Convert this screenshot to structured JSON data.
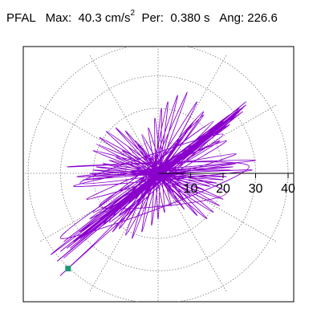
{
  "header": {
    "station": "PFAL",
    "max_label": "Max:",
    "max_value": "40.3 cm/s",
    "max_exp": "2",
    "per_label": "Per:",
    "per_value": "0.380 s",
    "ang_label": "Ang:",
    "ang_value": "226.6"
  },
  "chart_data": {
    "type": "scatter",
    "subtype": "polar-hodogram",
    "title": "PFAL   Max:   40.3 cm/s2   Per:  0.380 s   Ang: 226.6",
    "units": "cm/s2",
    "peak_amplitude": 40.3,
    "period_s": 0.38,
    "peak_angle_deg": 226.6,
    "radial_range": [
      0,
      42
    ],
    "radial_ticks": [
      10,
      20,
      30,
      40
    ],
    "radial_tick_labels": [
      "10",
      "20",
      "30",
      "40"
    ],
    "angular_grid_step_deg": 30,
    "grid": true,
    "peak_marker": {
      "x": -27.7,
      "y": -29.3,
      "color": "#1a9a75"
    },
    "trace_color": "#8a00cc",
    "trace_points": [
      [
        0,
        0
      ],
      [
        4,
        3
      ],
      [
        -3,
        -2
      ],
      [
        6,
        5
      ],
      [
        -5,
        -4
      ],
      [
        8,
        6
      ],
      [
        -7,
        -6
      ],
      [
        10,
        8
      ],
      [
        -9,
        -7
      ],
      [
        12,
        9
      ],
      [
        -11,
        -9
      ],
      [
        14,
        11
      ],
      [
        -13,
        -10
      ],
      [
        17,
        13
      ],
      [
        -16,
        -12
      ],
      [
        20,
        15
      ],
      [
        -18,
        -14
      ],
      [
        23,
        18
      ],
      [
        -21,
        -17
      ],
      [
        26,
        19
      ],
      [
        -24,
        -20
      ],
      [
        27,
        22
      ],
      [
        -27,
        -23
      ],
      [
        25,
        20
      ],
      [
        -29,
        -21
      ],
      [
        22,
        18
      ],
      [
        -30,
        -24
      ],
      [
        20,
        16
      ],
      [
        -31,
        -27
      ],
      [
        18,
        15
      ],
      [
        -33,
        -25
      ],
      [
        16,
        12
      ],
      [
        -30,
        -20
      ],
      [
        28,
        2
      ],
      [
        -28,
        2
      ],
      [
        30,
        4
      ],
      [
        -25,
        -1
      ],
      [
        29,
        1
      ],
      [
        -26,
        -4
      ],
      [
        24,
        6
      ],
      [
        -22,
        -8
      ],
      [
        21,
        10
      ],
      [
        -18,
        -12
      ],
      [
        18,
        14
      ],
      [
        -15,
        -15
      ],
      [
        14,
        19
      ],
      [
        -12,
        -17
      ],
      [
        12,
        22
      ],
      [
        -10,
        -19
      ],
      [
        9,
        25
      ],
      [
        -8,
        -20
      ],
      [
        6,
        24
      ],
      [
        -5,
        -18
      ],
      [
        3,
        22
      ],
      [
        -2,
        -16
      ],
      [
        1,
        20
      ],
      [
        0,
        -14
      ],
      [
        -1,
        17
      ],
      [
        2,
        -12
      ],
      [
        -3,
        14
      ],
      [
        4,
        -10
      ],
      [
        -5,
        12
      ],
      [
        6,
        -9
      ],
      [
        -7,
        10
      ],
      [
        8,
        -8
      ],
      [
        -9,
        8
      ],
      [
        10,
        -7
      ],
      [
        -11,
        7
      ],
      [
        12,
        -6
      ],
      [
        -13,
        5
      ],
      [
        14,
        -5
      ],
      [
        -15,
        4
      ],
      [
        16,
        -4
      ],
      [
        -17,
        3
      ],
      [
        18,
        -3
      ],
      [
        -19,
        2
      ],
      [
        20,
        -2
      ],
      [
        -20,
        1
      ],
      [
        21,
        -1
      ],
      [
        -21,
        0
      ],
      [
        22,
        1
      ],
      [
        -22,
        -1
      ],
      [
        23,
        2
      ],
      [
        -23,
        -2
      ],
      [
        24,
        3
      ],
      [
        -24,
        -3
      ],
      [
        20,
        12
      ],
      [
        -20,
        -12
      ],
      [
        17,
        16
      ],
      [
        -17,
        -16
      ],
      [
        14,
        18
      ],
      [
        -14,
        -18
      ],
      [
        11,
        16
      ],
      [
        -11,
        -16
      ],
      [
        8,
        12
      ],
      [
        -8,
        -12
      ],
      [
        5,
        8
      ],
      [
        -5,
        -8
      ],
      [
        3,
        4
      ],
      [
        -3,
        -4
      ],
      [
        1,
        1
      ],
      [
        -2,
        5
      ],
      [
        4,
        -6
      ],
      [
        -6,
        9
      ],
      [
        8,
        -11
      ],
      [
        -10,
        13
      ],
      [
        12,
        -13
      ],
      [
        -13,
        14
      ],
      [
        15,
        -14
      ],
      [
        -16,
        13
      ],
      [
        17,
        -12
      ],
      [
        -18,
        11
      ],
      [
        19,
        -10
      ],
      [
        -19,
        9
      ],
      [
        20,
        -8
      ],
      [
        -20,
        7
      ],
      [
        21,
        -6
      ],
      [
        -18,
        -10
      ],
      [
        19,
        10
      ],
      [
        -21,
        -14
      ],
      [
        22,
        15
      ],
      [
        -24,
        -18
      ],
      [
        24,
        18
      ],
      [
        -26,
        -21
      ],
      [
        26,
        20
      ],
      [
        -28,
        -23
      ],
      [
        27,
        21
      ],
      [
        -29,
        -26
      ],
      [
        25,
        19
      ],
      [
        -27.7,
        -29.3
      ],
      [
        -20,
        -22
      ],
      [
        -10,
        -12
      ],
      [
        0,
        -3
      ],
      [
        10,
        6
      ],
      [
        18,
        12
      ],
      [
        23,
        17
      ],
      [
        19,
        13
      ],
      [
        12,
        7
      ],
      [
        5,
        1
      ],
      [
        -2,
        -5
      ],
      [
        -8,
        -10
      ],
      [
        -12,
        -13
      ],
      [
        -9,
        -9
      ],
      [
        -4,
        -3
      ],
      [
        2,
        2
      ],
      [
        7,
        6
      ],
      [
        4,
        4
      ],
      [
        0,
        0
      ]
    ]
  }
}
